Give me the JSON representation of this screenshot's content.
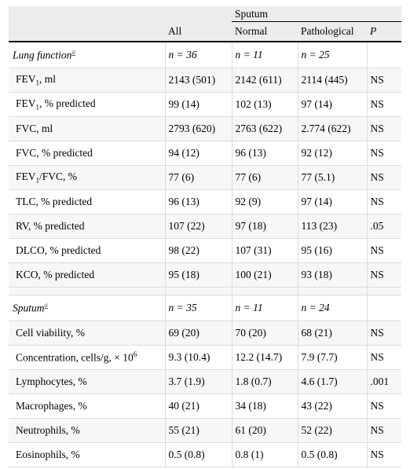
{
  "header": {
    "group": "Sputum",
    "all": "All",
    "normal": "Normal",
    "pathological": "Pathological",
    "p": "P"
  },
  "lung_section": {
    "title": "Lung function",
    "footnote_mark": "a",
    "n_all": "n = 36",
    "n_normal": "n = 11",
    "n_path": "n = 25"
  },
  "lung_rows": [
    {
      "pre": "FEV",
      "sub": "1",
      "post": ", ml",
      "all": "2143 (501)",
      "normal": "2142 (611)",
      "path": "2114 (445)",
      "p": "NS"
    },
    {
      "pre": "FEV",
      "sub": "1",
      "post": ", % predicted",
      "all": "99 (14)",
      "normal": "102 (13)",
      "path": "97 (14)",
      "p": "NS"
    },
    {
      "pre": "FVC, ml",
      "sub": "",
      "post": "",
      "all": "2793 (620)",
      "normal": "2763 (622)",
      "path": "2.774 (622)",
      "p": "NS"
    },
    {
      "pre": "FVC, % predicted",
      "sub": "",
      "post": "",
      "all": "94 (12)",
      "normal": "96 (13)",
      "path": "92 (12)",
      "p": "NS"
    },
    {
      "pre": "FEV",
      "sub": "1",
      "post": "/FVC, %",
      "all": "77 (6)",
      "normal": "77 (6)",
      "path": "77 (5.1)",
      "p": "NS"
    },
    {
      "pre": "TLC, % predicted",
      "sub": "",
      "post": "",
      "all": "96 (13)",
      "normal": "92 (9)",
      "path": "97 (14)",
      "p": "NS"
    },
    {
      "pre": "RV, % predicted",
      "sub": "",
      "post": "",
      "all": "107 (22)",
      "normal": "97 (18)",
      "path": "113 (23)",
      "p": ".05"
    },
    {
      "pre": "DLCO, % predicted",
      "sub": "",
      "post": "",
      "all": "98 (22)",
      "normal": "107 (31)",
      "path": "95 (16)",
      "p": "NS"
    },
    {
      "pre": "KCO, % predicted",
      "sub": "",
      "post": "",
      "all": "95 (18)",
      "normal": "100 (21)",
      "path": "93 (18)",
      "p": "NS"
    }
  ],
  "sputum_section": {
    "title": "Sputum",
    "footnote_mark": "a",
    "n_all": "n = 35",
    "n_normal": "n = 11",
    "n_path": "n = 24"
  },
  "sputum_rows": [
    {
      "pre": "Cell viability, %",
      "sup": "",
      "all": "69 (20)",
      "normal": "70 (20)",
      "path": "68 (21)",
      "p": "NS"
    },
    {
      "pre": "Concentration, cells/g, × 10",
      "sup": "6",
      "all": "9.3 (10.4)",
      "normal": "12.2 (14.7)",
      "path": "7.9 (7.7)",
      "p": "NS"
    },
    {
      "pre": "Lymphocytes, %",
      "sup": "",
      "all": "3.7 (1.9)",
      "normal": "1.8 (0.7)",
      "path": "4.6 (1.7)",
      "p": ".001"
    },
    {
      "pre": "Macrophages, %",
      "sup": "",
      "all": "40 (21)",
      "normal": "34 (18)",
      "path": "43 (22)",
      "p": "NS"
    },
    {
      "pre": "Neutrophils, %",
      "sup": "",
      "all": "55 (21)",
      "normal": "61 (20)",
      "path": "52 (22)",
      "p": "NS"
    },
    {
      "pre": "Eosinophils, %",
      "sup": "",
      "all": "0.5 (0.8)",
      "normal": "0.8 (1)",
      "path": "0.5 (0.8)",
      "p": "NS"
    }
  ]
}
